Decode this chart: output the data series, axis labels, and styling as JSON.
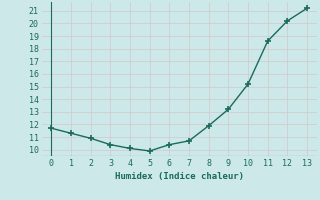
{
  "x": [
    0,
    1,
    2,
    3,
    4,
    5,
    6,
    7,
    8,
    9,
    10,
    11,
    12,
    13
  ],
  "y": [
    11.7,
    11.3,
    10.9,
    10.4,
    10.1,
    9.9,
    10.4,
    10.7,
    11.9,
    13.2,
    15.2,
    18.6,
    20.2,
    21.2
  ],
  "xlabel": "Humidex (Indice chaleur)",
  "ylim": [
    9.5,
    21.7
  ],
  "xlim": [
    -0.5,
    13.5
  ],
  "yticks": [
    10,
    11,
    12,
    13,
    14,
    15,
    16,
    17,
    18,
    19,
    20,
    21
  ],
  "xticks": [
    0,
    1,
    2,
    3,
    4,
    5,
    6,
    7,
    8,
    9,
    10,
    11,
    12,
    13
  ],
  "line_color": "#1a6b5a",
  "marker_color": "#1a6b5a",
  "bg_color": "#cce8e8",
  "grid_color": "#b8d8d8",
  "tick_label_color": "#1a6b5a",
  "axis_label_color": "#1a6b5a"
}
